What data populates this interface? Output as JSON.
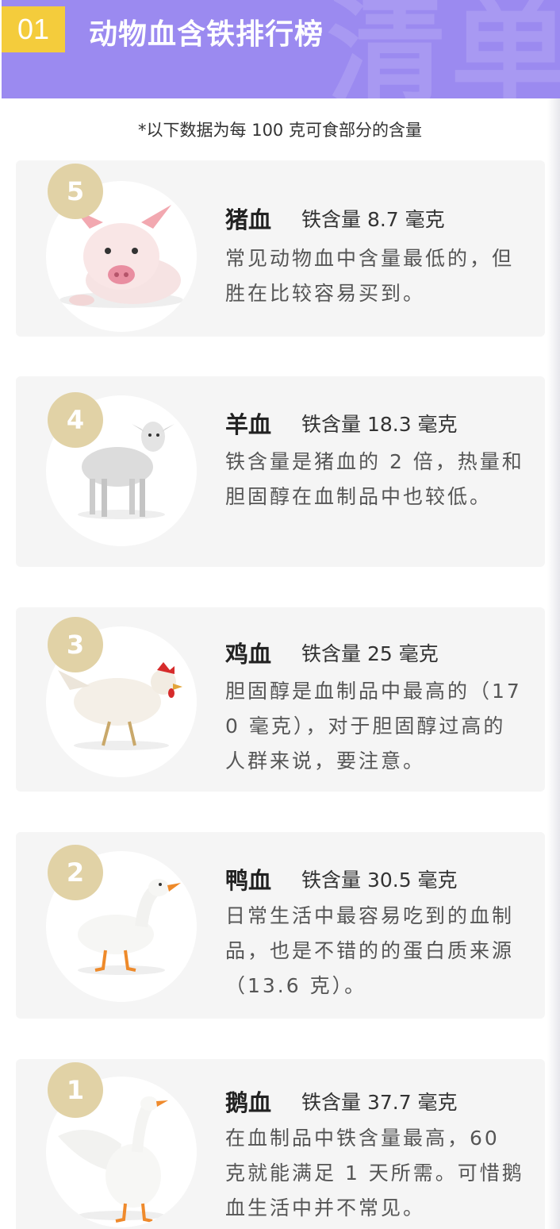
{
  "header": {
    "section_number": "01",
    "title": "动物血含铁排行榜",
    "watermark": "清单",
    "bg_color": "#9b8af0",
    "badge_color": "#f4cc3c"
  },
  "note": "*以下数据为每 100 克可食部分的含量",
  "rank_color": "#e1d2a6",
  "items": [
    {
      "rank": "5",
      "name": "猪血",
      "iron": "铁含量 8.7 毫克",
      "desc": "常见动物血中含量最低的，但胜在比较容易买到。",
      "image": "pig-photo"
    },
    {
      "rank": "4",
      "name": "羊血",
      "iron": "铁含量 18.3 毫克",
      "desc": "铁含量是猪血的 2 倍，热量和胆固醇在血制品中也较低。",
      "image": "lamb-photo"
    },
    {
      "rank": "3",
      "name": "鸡血",
      "iron": "铁含量 25 毫克",
      "desc": "胆固醇是血制品中最高的（170 毫克），对于胆固醇过高的人群来说，要注意。",
      "image": "chicken-photo"
    },
    {
      "rank": "2",
      "name": "鸭血",
      "iron": "铁含量 30.5 毫克",
      "desc": "日常生活中最容易吃到的血制品，也是不错的的蛋白质来源（13.6 克）。",
      "image": "duck-photo"
    },
    {
      "rank": "1",
      "name": "鹅血",
      "iron": "铁含量 37.7 毫克",
      "desc": "在血制品中铁含量最高，60 克就能满足 1 天所需。可惜鹅血生活中并不常见。",
      "image": "goose-photo"
    }
  ]
}
